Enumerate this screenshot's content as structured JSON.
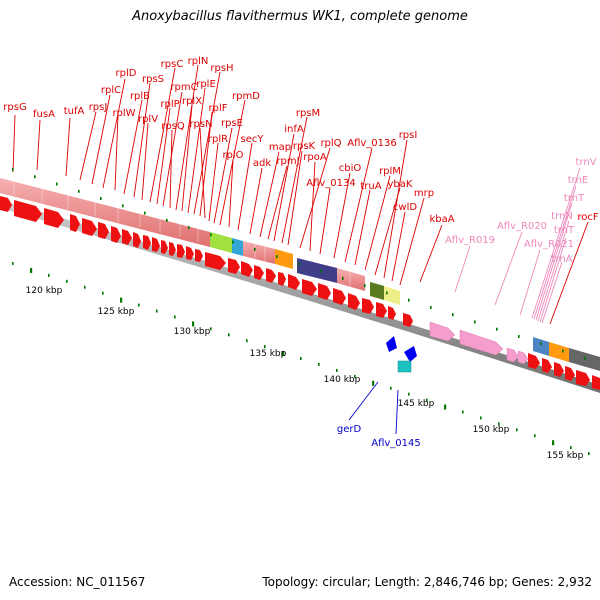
{
  "title": "Anoxybacillus flavithermus WK1, complete genome",
  "footer": {
    "accession": "Accession: NC_011567",
    "topology": "Topology: circular; Length: 2,846,746 bp; Genes: 2,932"
  },
  "colors": {
    "gene_label": "#dd0000",
    "rrna_label": "#ee88bb",
    "other_label": "#0000cc",
    "backbone": "#888888",
    "tick": "#007700"
  },
  "scale_labels": [
    "120 kbp",
    "125 kbp",
    "130 kbp",
    "135 kbp",
    "140 kbp",
    "145 kbp",
    "150 kbp",
    "155 kbp"
  ],
  "gene_labels": [
    "rpsG",
    "fusA",
    "tufA",
    "rpsJ",
    "rplC",
    "rplD",
    "rplW",
    "rplB",
    "rpsS",
    "rplV",
    "rpsC",
    "rplP",
    "rpmC",
    "rpsQ",
    "rplN",
    "rplX",
    "rplE",
    "rpsH",
    "rplF",
    "rpsN",
    "rplR",
    "rpsE",
    "rpmD",
    "rplO",
    "secY",
    "adk",
    "map",
    "rpmJ",
    "infA",
    "rpsM",
    "rpsK",
    "rplQ",
    "rpoA",
    "Aflv_0134",
    "cbiO",
    "Aflv_0136",
    "truA",
    "rplM",
    "ybaK",
    "rpsI",
    "cwlD",
    "mrp",
    "kbaA",
    "rocF"
  ],
  "rrna_labels": [
    "trnV",
    "trnE",
    "trnT",
    "trnN",
    "trnT",
    "Aflv_R020",
    "Aflv_R021",
    "trnA",
    "Aflv_R019"
  ],
  "other_labels": [
    "gerD",
    "Aflv_0145"
  ]
}
